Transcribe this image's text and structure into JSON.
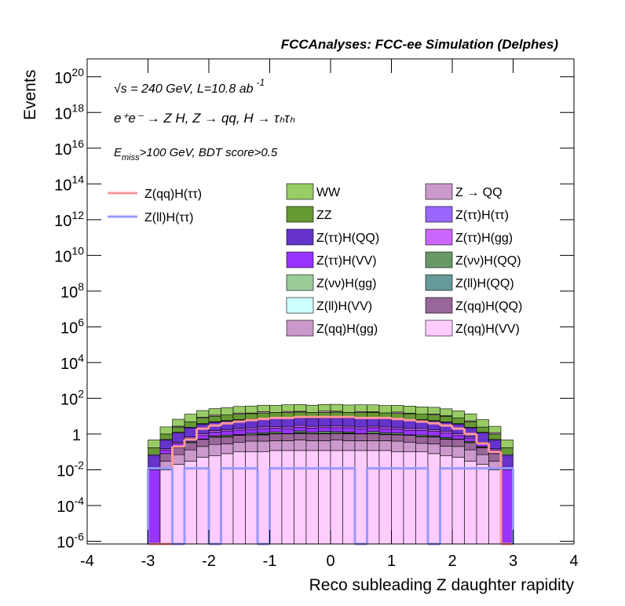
{
  "chart_data": {
    "type": "stacked-histogram",
    "title": "FCCAnalyses: FCC-ee Simulation (Delphes)",
    "x_label": "Reco subleading Z daughter rapidity",
    "y_label": "Events",
    "annotations": [
      {
        "text": "√s = 240 GeV, L=10.8 ab",
        "sup": "-1"
      },
      {
        "text": "e⁺e⁻ → Z H, Z → qq, H → τₕτₕ"
      },
      {
        "text": "E",
        "sub": "miss",
        "rest": ">100 GeV, BDT score>0.5"
      }
    ],
    "log_y": true,
    "xlim": [
      -4,
      4
    ],
    "xticks": [
      -4,
      -3,
      -2,
      -1,
      0,
      1,
      2,
      3,
      4
    ],
    "ylim": [
      7e-07,
      1e+21
    ],
    "yticks": [
      {
        "value": 1e-06,
        "label": "10",
        "exponent": "-6"
      },
      {
        "value": 0.0001,
        "label": "10",
        "exponent": "-4"
      },
      {
        "value": 0.01,
        "label": "10",
        "exponent": "-2"
      },
      1,
      {
        "value": 100.0,
        "label": "10",
        "exponent": "2"
      },
      {
        "value": 10000.0,
        "label": "10",
        "exponent": "4"
      },
      {
        "value": 1000000.0,
        "label": "10",
        "exponent": "6"
      },
      {
        "value": 100000000.0,
        "label": "10",
        "exponent": "8"
      },
      {
        "value": 10000000000.0,
        "label": "10",
        "exponent": "10"
      },
      {
        "value": 1000000000000.0,
        "label": "10",
        "exponent": "12"
      },
      {
        "value": 100000000000000.0,
        "label": "10",
        "exponent": "14"
      },
      {
        "value": 1e+16,
        "label": "10",
        "exponent": "16"
      },
      {
        "value": 1e+18,
        "label": "10",
        "exponent": "18"
      },
      {
        "value": 1e+20,
        "label": "10",
        "exponent": "20"
      }
    ],
    "bins": [
      -3,
      -2.8,
      -2.6,
      -2.4,
      -2.2,
      -2,
      -1.8,
      -1.6,
      -1.4,
      -1.2,
      -1,
      -0.8,
      -0.6,
      -0.4,
      -0.2,
      0,
      0.2,
      0.4,
      0.6,
      0.8,
      1,
      1.2,
      1.4,
      1.6,
      1.8,
      2,
      2.2,
      2.4,
      2.6,
      2.8,
      3
    ],
    "series": [
      {
        "name": "WW",
        "color": "#99cc66",
        "values": [
          0.3,
          1.5,
          4,
          8,
          12,
          15,
          18,
          20,
          22,
          23,
          24,
          25,
          26,
          25,
          26,
          27,
          26,
          25,
          25,
          24,
          23,
          22,
          20,
          18,
          15,
          12,
          8,
          4,
          1.5,
          0.3
        ]
      },
      {
        "name": "Z → QQ",
        "color": "#cc99cc",
        "values": [
          0,
          0,
          0.3,
          0,
          0.8,
          1.5,
          0,
          2,
          1.2,
          3,
          0,
          2.5,
          1.8,
          0,
          3,
          2,
          0,
          2.2,
          1.5,
          0,
          2.8,
          1,
          0,
          1.6,
          0.9,
          0,
          0.6,
          0,
          0.2,
          0
        ]
      },
      {
        "name": "ZZ",
        "color": "#669933",
        "values": [
          0.1,
          0.5,
          1.2,
          2.5,
          4,
          5,
          6,
          6.5,
          7,
          7.5,
          8,
          8,
          8.5,
          8,
          8,
          8.5,
          8,
          8,
          8,
          7.5,
          7,
          7,
          6.5,
          6,
          5,
          4,
          2.5,
          1.2,
          0.5,
          0.1
        ]
      },
      {
        "name": "Z(ττ)H(ττ)",
        "color": "#9966ff",
        "values": [
          0.01,
          0.05,
          0.1,
          0.2,
          0.3,
          0.35,
          0.4,
          0.4,
          0.45,
          0.5,
          0.5,
          0.5,
          0.5,
          0.5,
          0.5,
          0.5,
          0.5,
          0.5,
          0.5,
          0.5,
          0.45,
          0.45,
          0.4,
          0.4,
          0.35,
          0.3,
          0.2,
          0.1,
          0.05,
          0.01
        ]
      },
      {
        "name": "Z(ττ)H(QQ)",
        "color": "#6633cc",
        "values": [
          0.05,
          0.3,
          0.8,
          1.5,
          2.5,
          3,
          3.5,
          4,
          4.2,
          4.5,
          5,
          5,
          5,
          5,
          5,
          5,
          5,
          5,
          5,
          4.8,
          4.5,
          4.2,
          4,
          3.5,
          3,
          2.5,
          1.5,
          0.8,
          0.3,
          0.05
        ]
      },
      {
        "name": "Z(ττ)H(gg)",
        "color": "#cc66ff",
        "values": [
          0,
          0.02,
          0.05,
          0.1,
          0.2,
          0.3,
          0.3,
          0.4,
          0.4,
          0.5,
          0.5,
          0.5,
          0.6,
          0.5,
          0.5,
          0.6,
          0.5,
          0.5,
          0.5,
          0.5,
          0.4,
          0.4,
          0.4,
          0.3,
          0.3,
          0.2,
          0.1,
          0.05,
          0.02,
          0
        ]
      },
      {
        "name": "Z(ττ)H(VV)",
        "color": "#9933ff",
        "values": [
          0.01,
          0.05,
          0.1,
          0.2,
          0.3,
          0.5,
          0.6,
          0.7,
          0.7,
          0.8,
          0.8,
          0.9,
          0.9,
          0.9,
          0.9,
          0.9,
          0.9,
          0.9,
          0.9,
          0.8,
          0.8,
          0.7,
          0.7,
          0.6,
          0.5,
          0.3,
          0.2,
          0.1,
          0.05,
          0.01
        ]
      },
      {
        "name": "Z(νν)H(QQ)",
        "color": "#669966",
        "values": [
          0,
          0,
          0.02,
          0.05,
          0,
          0.1,
          0.15,
          0,
          0.2,
          0.2,
          0.25,
          0,
          0.3,
          0.2,
          0.3,
          0.25,
          0.2,
          0,
          0.3,
          0.2,
          0.2,
          0,
          0.15,
          0.1,
          0.1,
          0,
          0.05,
          0.02,
          0,
          0
        ]
      },
      {
        "name": "Z(νν)H(gg)",
        "color": "#99cc99",
        "values": [
          0,
          0,
          0,
          0.01,
          0,
          0.02,
          0,
          0.03,
          0,
          0.04,
          0.05,
          0,
          0.05,
          0.04,
          0,
          0.05,
          0.04,
          0,
          0.05,
          0,
          0.04,
          0,
          0.03,
          0,
          0.02,
          0,
          0.01,
          0,
          0,
          0
        ]
      },
      {
        "name": "Z(ll)H(QQ)",
        "color": "#669999",
        "values": [
          0,
          0,
          0.01,
          0,
          0.02,
          0,
          0.03,
          0.03,
          0,
          0.04,
          0,
          0.05,
          0.05,
          0,
          0.05,
          0,
          0.05,
          0.04,
          0,
          0.04,
          0,
          0.03,
          0,
          0.03,
          0,
          0.02,
          0,
          0.01,
          0,
          0
        ]
      },
      {
        "name": "Z(ll)H(VV)",
        "color": "#ccffff",
        "values": [
          0,
          0,
          0,
          0,
          0.01,
          0,
          0,
          0.02,
          0,
          0.02,
          0,
          0,
          0.02,
          0,
          0.02,
          0,
          0.02,
          0,
          0,
          0.02,
          0,
          0.02,
          0,
          0,
          0.01,
          0,
          0,
          0,
          0,
          0
        ]
      },
      {
        "name": "Z(qq)H(QQ)",
        "color": "#996699",
        "values": [
          0,
          0.05,
          0.1,
          0.2,
          0.3,
          0.4,
          0.4,
          0.5,
          0.5,
          0.5,
          0.6,
          0.6,
          0.6,
          0.6,
          0.6,
          0.6,
          0.6,
          0.6,
          0.6,
          0.5,
          0.5,
          0.5,
          0.4,
          0.4,
          0.3,
          0.3,
          0.2,
          0.1,
          0.05,
          0
        ]
      },
      {
        "name": "Z(qq)H(gg)",
        "color": "#cc99cc",
        "values": [
          0,
          0.02,
          0.05,
          0.1,
          0.15,
          0.2,
          0.2,
          0.25,
          0.3,
          0.3,
          0.3,
          0.3,
          0.35,
          0.3,
          0.3,
          0.35,
          0.3,
          0.3,
          0.3,
          0.3,
          0.3,
          0.25,
          0.2,
          0.2,
          0.15,
          0.15,
          0.1,
          0.05,
          0.02,
          0
        ]
      },
      {
        "name": "Z(qq)H(VV)",
        "color": "#ffccff",
        "values": [
          0,
          0.01,
          0.02,
          0.03,
          0.05,
          0.06,
          0.08,
          0.1,
          0.1,
          0.1,
          0.12,
          0.12,
          0.12,
          0.12,
          0.12,
          0.12,
          0.12,
          0.12,
          0.12,
          0.12,
          0.1,
          0.1,
          0.1,
          0.08,
          0.06,
          0.05,
          0.03,
          0.02,
          0.01,
          0
        ]
      }
    ],
    "line_series": [
      {
        "name": "Z(qq)H(ττ)",
        "color": "#ff9999",
        "values": [
          0,
          0,
          0.2,
          0.5,
          2,
          3,
          4,
          5,
          6,
          7,
          8,
          8,
          9,
          9,
          9,
          9,
          9,
          8,
          8,
          8,
          7,
          6,
          5,
          4,
          3,
          2,
          1,
          0.3,
          0.1,
          0
        ]
      },
      {
        "name": "Z(ll)H(ττ)",
        "color": "#9999ff",
        "values": [
          0.012,
          0.012,
          0,
          0.012,
          0.012,
          0,
          0.012,
          0.012,
          0.012,
          0,
          0.012,
          0.012,
          0.012,
          0.012,
          0.012,
          0.012,
          0.012,
          0,
          0.012,
          0.012,
          0.012,
          0.012,
          0.012,
          0,
          0.012,
          0.012,
          0.012,
          0.012,
          0.012,
          0.012
        ]
      }
    ]
  }
}
